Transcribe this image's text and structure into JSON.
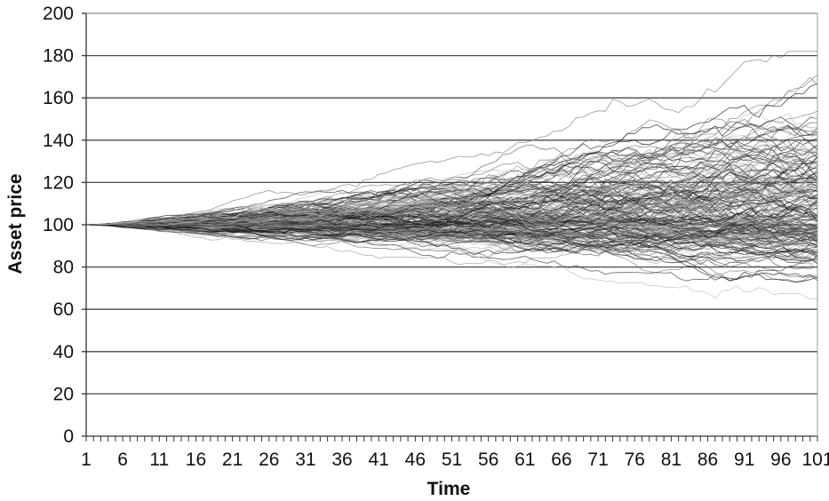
{
  "chart_data": {
    "type": "line",
    "title": "",
    "xlabel": "Time",
    "ylabel": "Asset price",
    "ylim": [
      0,
      200
    ],
    "y_ticks": [
      0,
      20,
      40,
      60,
      80,
      100,
      120,
      140,
      160,
      180,
      200
    ],
    "x_range": [
      1,
      101
    ],
    "x_tick_labels": [
      "1",
      "6",
      "11",
      "16",
      "21",
      "26",
      "31",
      "36",
      "41",
      "46",
      "51",
      "56",
      "61",
      "66",
      "71",
      "76",
      "81",
      "86",
      "91",
      "96",
      "101"
    ],
    "grid": "horizontal",
    "legend": "none",
    "n_paths": 200,
    "start_value": 100,
    "band_percentiles": {
      "x": [
        1,
        11,
        21,
        31,
        41,
        51,
        61,
        71,
        81,
        91,
        101
      ],
      "p_low": [
        100,
        88,
        82,
        78,
        75,
        72,
        70,
        68,
        65,
        62,
        60
      ],
      "p_median": [
        100,
        100,
        100,
        101,
        101,
        102,
        102,
        103,
        103,
        104,
        104
      ],
      "p_high": [
        100,
        114,
        122,
        128,
        134,
        142,
        150,
        158,
        165,
        172,
        176
      ]
    },
    "line_colors": [
      "#111111",
      "#333333",
      "#555555",
      "#777777",
      "#999999",
      "#bbbbbb"
    ]
  }
}
